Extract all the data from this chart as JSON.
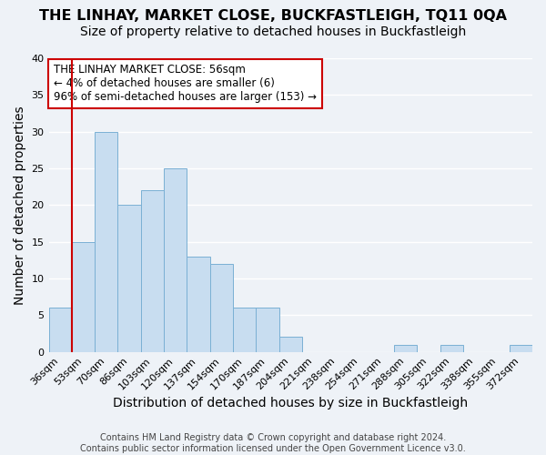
{
  "title": "THE LINHAY, MARKET CLOSE, BUCKFASTLEIGH, TQ11 0QA",
  "subtitle": "Size of property relative to detached houses in Buckfastleigh",
  "xlabel": "Distribution of detached houses by size in Buckfastleigh",
  "ylabel": "Number of detached properties",
  "bar_color": "#c8ddf0",
  "bar_edge_color": "#7ab0d4",
  "bins": [
    "36sqm",
    "53sqm",
    "70sqm",
    "86sqm",
    "103sqm",
    "120sqm",
    "137sqm",
    "154sqm",
    "170sqm",
    "187sqm",
    "204sqm",
    "221sqm",
    "238sqm",
    "254sqm",
    "271sqm",
    "288sqm",
    "305sqm",
    "322sqm",
    "338sqm",
    "355sqm",
    "372sqm"
  ],
  "values": [
    6,
    15,
    30,
    20,
    22,
    25,
    13,
    12,
    6,
    6,
    2,
    0,
    0,
    0,
    0,
    1,
    0,
    1,
    0,
    0,
    1
  ],
  "ylim": [
    0,
    40
  ],
  "yticks": [
    0,
    5,
    10,
    15,
    20,
    25,
    30,
    35,
    40
  ],
  "property_line_color": "#cc0000",
  "annotation_line1": "THE LINHAY MARKET CLOSE: 56sqm",
  "annotation_line2": "← 4% of detached houses are smaller (6)",
  "annotation_line3": "96% of semi-detached houses are larger (153) →",
  "annotation_box_edge": "#cc0000",
  "footer_line1": "Contains HM Land Registry data © Crown copyright and database right 2024.",
  "footer_line2": "Contains public sector information licensed under the Open Government Licence v3.0.",
  "background_color": "#eef2f7",
  "grid_color": "#ffffff",
  "title_fontsize": 11.5,
  "subtitle_fontsize": 10,
  "axis_label_fontsize": 10,
  "tick_fontsize": 8,
  "annotation_fontsize": 8.5,
  "footer_fontsize": 7
}
